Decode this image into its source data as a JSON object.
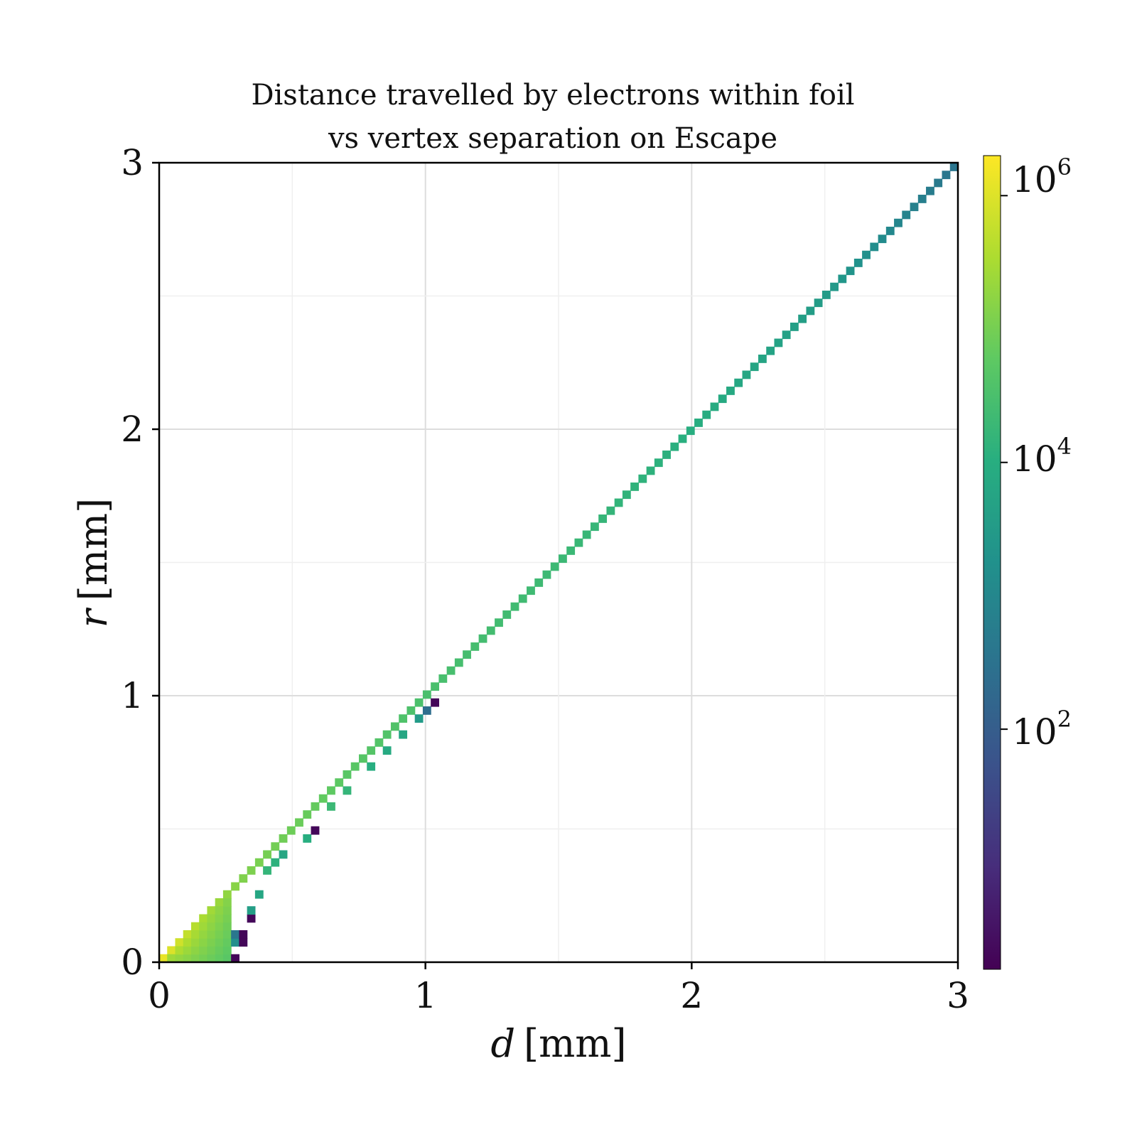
{
  "chart_data": {
    "type": "heatmap",
    "title": [
      "Distance travelled by electrons within foil",
      "vs vertex separation on Escape"
    ],
    "xlabel_var": "d",
    "xlabel_unit": "[mm]",
    "ylabel_var": "r",
    "ylabel_unit": "[mm]",
    "xlim": [
      0,
      3
    ],
    "ylim": [
      0,
      3
    ],
    "xticks": [
      "0",
      "1",
      "2",
      "3"
    ],
    "yticks": [
      "0",
      "1",
      "2",
      "3"
    ],
    "grid": true,
    "bin_width": 0.03,
    "colorscale": "viridis",
    "color_scale_type": "log",
    "color_range_log10": [
      0.2,
      6.3
    ],
    "colorbar_ticks": [
      {
        "base": "10",
        "exp": "6",
        "log10": 6
      },
      {
        "base": "10",
        "exp": "4",
        "log10": 4
      },
      {
        "base": "10",
        "exp": "2",
        "log10": 2
      }
    ],
    "diagonal_log10_points": [
      [
        0.0,
        6.1
      ],
      [
        0.15,
        5.5
      ],
      [
        0.3,
        5.1
      ],
      [
        0.5,
        4.9
      ],
      [
        0.7,
        4.7
      ],
      [
        1.0,
        4.5
      ],
      [
        1.5,
        4.3
      ],
      [
        2.0,
        4.0
      ],
      [
        2.5,
        3.5
      ],
      [
        3.0,
        2.5
      ]
    ],
    "offdiag_columns": [
      {
        "x_range": [
          0.03,
          0.06
        ],
        "y_max": 0.03,
        "log10": 5.9
      },
      {
        "x_range": [
          0.06,
          0.09
        ],
        "y_max": 0.06,
        "log10": 5.8
      },
      {
        "x_range": [
          0.09,
          0.12
        ],
        "y_max": 0.09,
        "log10": 5.7
      },
      {
        "x_range": [
          0.12,
          0.15
        ],
        "y_max": 0.12,
        "log10": 5.6
      },
      {
        "x_range": [
          0.15,
          0.18
        ],
        "y_max": 0.15,
        "log10": 5.5
      },
      {
        "x_range": [
          0.18,
          0.21
        ],
        "y_max": 0.18,
        "log10": 5.4
      },
      {
        "x_range": [
          0.21,
          0.24
        ],
        "y_max": 0.21,
        "log10": 5.3
      },
      {
        "x_range": [
          0.24,
          0.27
        ],
        "y_max": 0.24,
        "log10": 5.2
      }
    ],
    "tail_cells": [
      {
        "x": 0.27,
        "y": 0.0,
        "log10": 0.3
      },
      {
        "x": 0.27,
        "y": 0.06,
        "log10": 3.2
      },
      {
        "x": 0.27,
        "y": 0.09,
        "log10": 2.6
      },
      {
        "x": 0.3,
        "y": 0.06,
        "log10": 0.3
      },
      {
        "x": 0.3,
        "y": 0.09,
        "log10": 0.3
      },
      {
        "x": 0.33,
        "y": 0.15,
        "log10": 0.3
      },
      {
        "x": 0.33,
        "y": 0.18,
        "log10": 3.6
      },
      {
        "x": 0.36,
        "y": 0.24,
        "log10": 3.8
      },
      {
        "x": 0.39,
        "y": 0.33,
        "log10": 4.2
      },
      {
        "x": 0.42,
        "y": 0.36,
        "log10": 4.1
      },
      {
        "x": 0.45,
        "y": 0.39,
        "log10": 3.8
      },
      {
        "x": 0.54,
        "y": 0.45,
        "log10": 4.0
      },
      {
        "x": 0.57,
        "y": 0.48,
        "log10": 0.3
      },
      {
        "x": 0.63,
        "y": 0.57,
        "log10": 4.3
      },
      {
        "x": 0.69,
        "y": 0.63,
        "log10": 4.2
      },
      {
        "x": 0.78,
        "y": 0.72,
        "log10": 4.0
      },
      {
        "x": 0.84,
        "y": 0.78,
        "log10": 3.9
      },
      {
        "x": 0.9,
        "y": 0.84,
        "log10": 3.8
      },
      {
        "x": 0.96,
        "y": 0.9,
        "log10": 3.5
      },
      {
        "x": 0.99,
        "y": 0.93,
        "log10": 2.4
      },
      {
        "x": 1.02,
        "y": 0.96,
        "log10": 0.3
      }
    ]
  }
}
